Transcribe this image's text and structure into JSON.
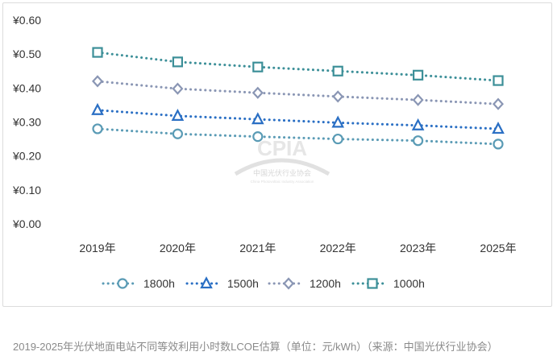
{
  "chart_data": {
    "type": "line",
    "categories": [
      "2019年",
      "2020年",
      "2021年",
      "2022年",
      "2023年",
      "2025年"
    ],
    "y_ticks": [
      "¥0.00",
      "¥0.10",
      "¥0.20",
      "¥0.30",
      "¥0.40",
      "¥0.50",
      "¥0.60"
    ],
    "ylim": [
      0,
      0.6
    ],
    "grid": false,
    "legend_position": "bottom",
    "series": [
      {
        "name": "1800h",
        "marker": "circle",
        "color": "#5a9bb5",
        "values": [
          0.28,
          0.265,
          0.257,
          0.25,
          0.245,
          0.235
        ]
      },
      {
        "name": "1500h",
        "marker": "triangle",
        "color": "#2a6fc4",
        "values": [
          0.335,
          0.318,
          0.308,
          0.298,
          0.29,
          0.28
        ]
      },
      {
        "name": "1200h",
        "marker": "diamond",
        "color": "#8a96b4",
        "values": [
          0.42,
          0.398,
          0.386,
          0.375,
          0.365,
          0.353
        ]
      },
      {
        "name": "1000h",
        "marker": "square",
        "color": "#3c8f98",
        "values": [
          0.505,
          0.477,
          0.462,
          0.45,
          0.438,
          0.422
        ]
      }
    ]
  },
  "watermark": {
    "logo": "CPIA",
    "cn": "中国光伏行业协会",
    "en": "China Photovoltaic Industry Association"
  },
  "caption": "2019-2025年光伏地面电站不同等效利用小时数LCOE估算（单位：元/kWh）（来源：中国光伏行业协会）"
}
